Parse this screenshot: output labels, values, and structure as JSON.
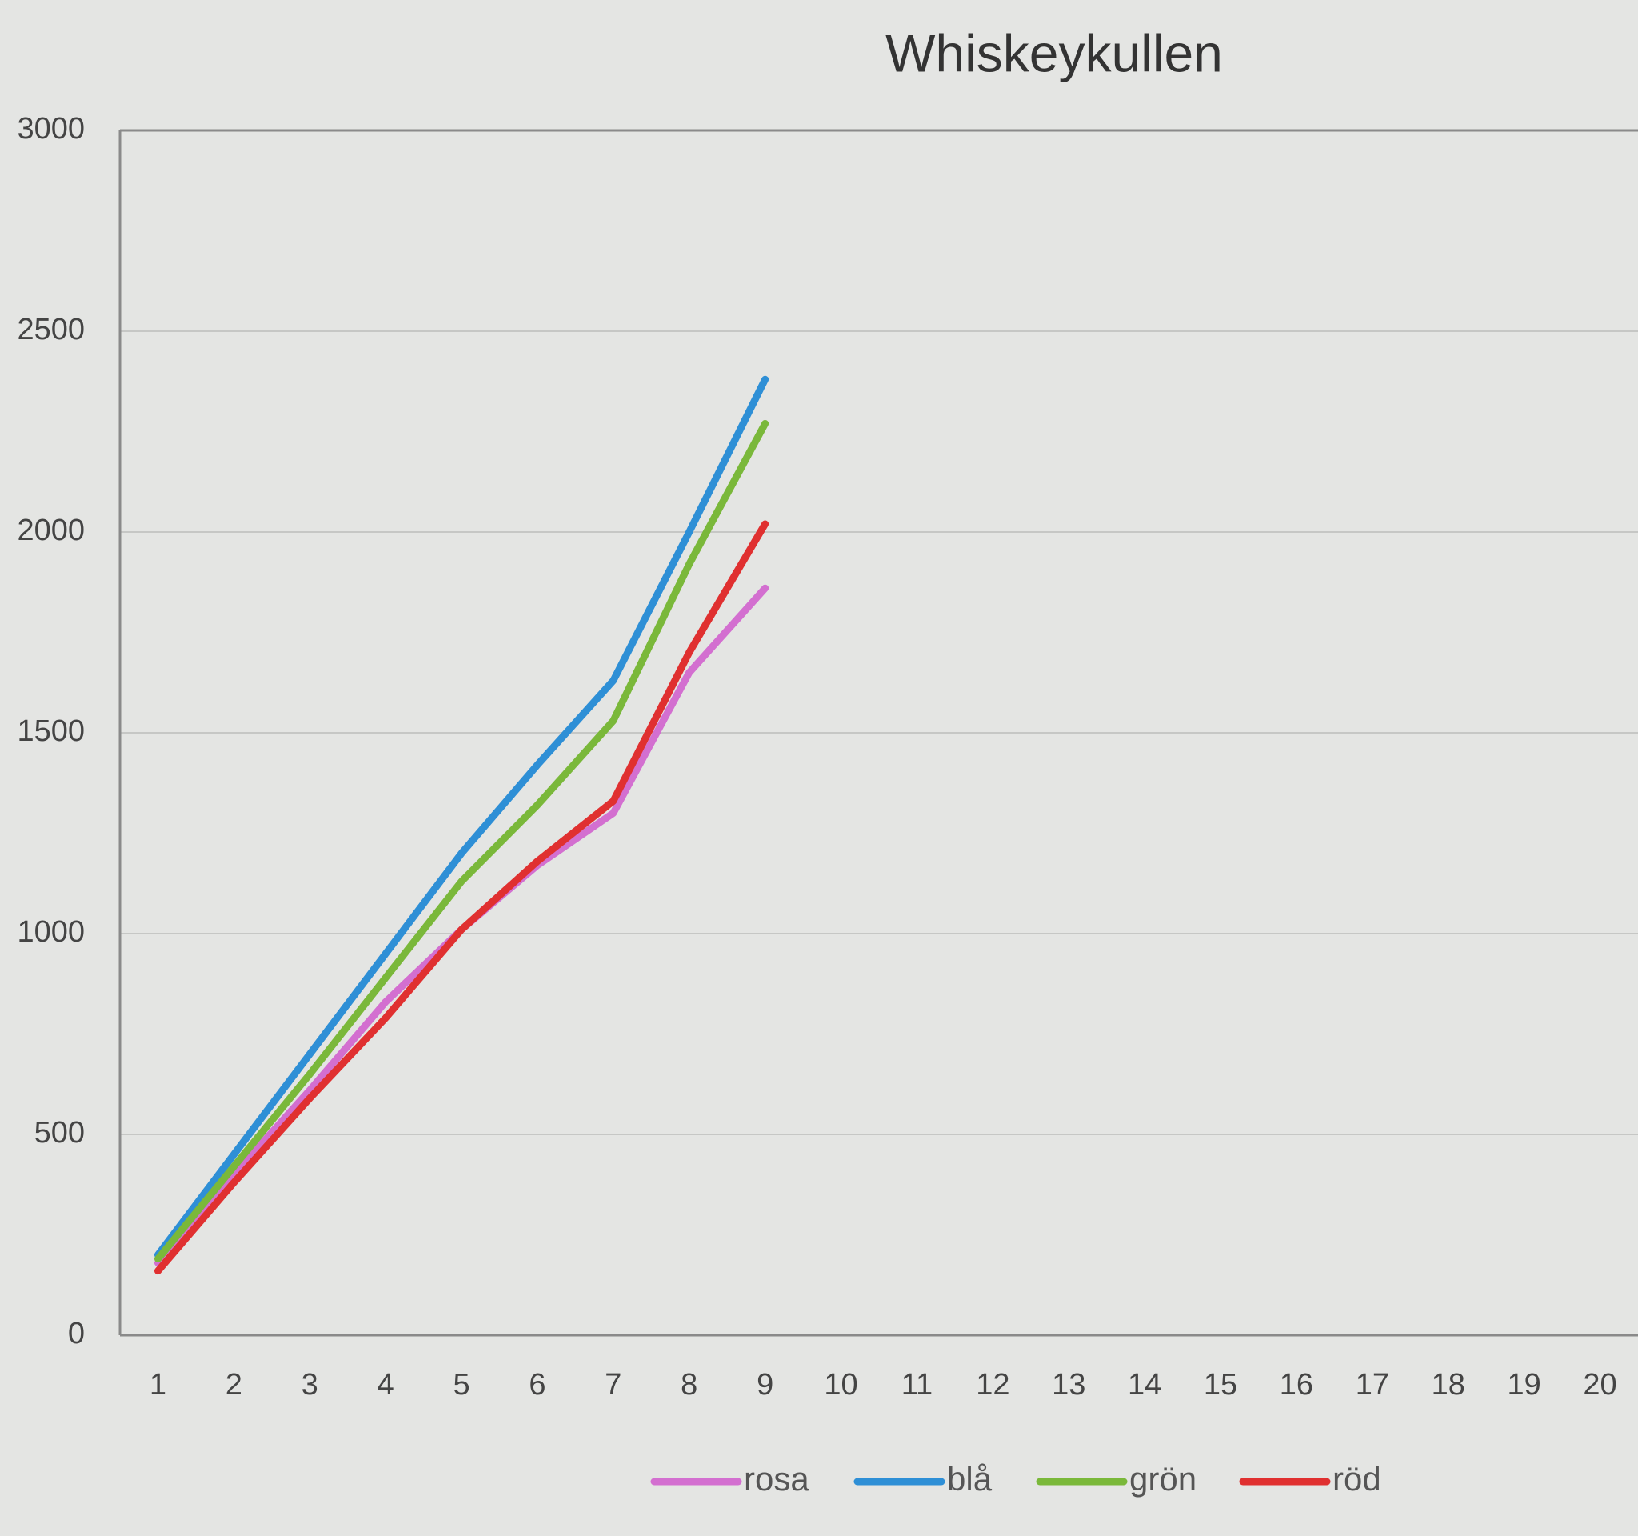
{
  "chart_data": {
    "type": "line",
    "title": "Whiskeykullen",
    "categories": [
      "1",
      "2",
      "3",
      "4",
      "5",
      "6",
      "7",
      "8",
      "9",
      "10",
      "11",
      "12",
      "13",
      "14",
      "15",
      "16",
      "17",
      "18",
      "19",
      "20"
    ],
    "series": [
      {
        "name": "rosa",
        "color": "#d36fd0",
        "values": [
          180,
          400,
          610,
          830,
          1010,
          1170,
          1300,
          1650,
          1860,
          null,
          null,
          null,
          null,
          null,
          null,
          null,
          null,
          null,
          null,
          null
        ]
      },
      {
        "name": "blå",
        "color": "#2e8fd6",
        "values": [
          200,
          450,
          700,
          950,
          1200,
          1420,
          1630,
          2000,
          2380,
          null,
          null,
          null,
          null,
          null,
          null,
          null,
          null,
          null,
          null,
          null
        ]
      },
      {
        "name": "grön",
        "color": "#7ab83a",
        "values": [
          190,
          420,
          650,
          890,
          1130,
          1320,
          1530,
          1920,
          2270,
          null,
          null,
          null,
          null,
          null,
          null,
          null,
          null,
          null,
          null,
          null
        ]
      },
      {
        "name": "röd",
        "color": "#e03030",
        "values": [
          160,
          380,
          590,
          790,
          1010,
          1180,
          1330,
          1700,
          2020,
          null,
          null,
          null,
          null,
          null,
          null,
          null,
          null,
          null,
          null,
          null
        ]
      }
    ],
    "ylim": [
      0,
      3000
    ],
    "yticks": [
      0,
      500,
      1000,
      1500,
      2000,
      2500,
      3000
    ],
    "grid": true,
    "legend": "bottom"
  }
}
